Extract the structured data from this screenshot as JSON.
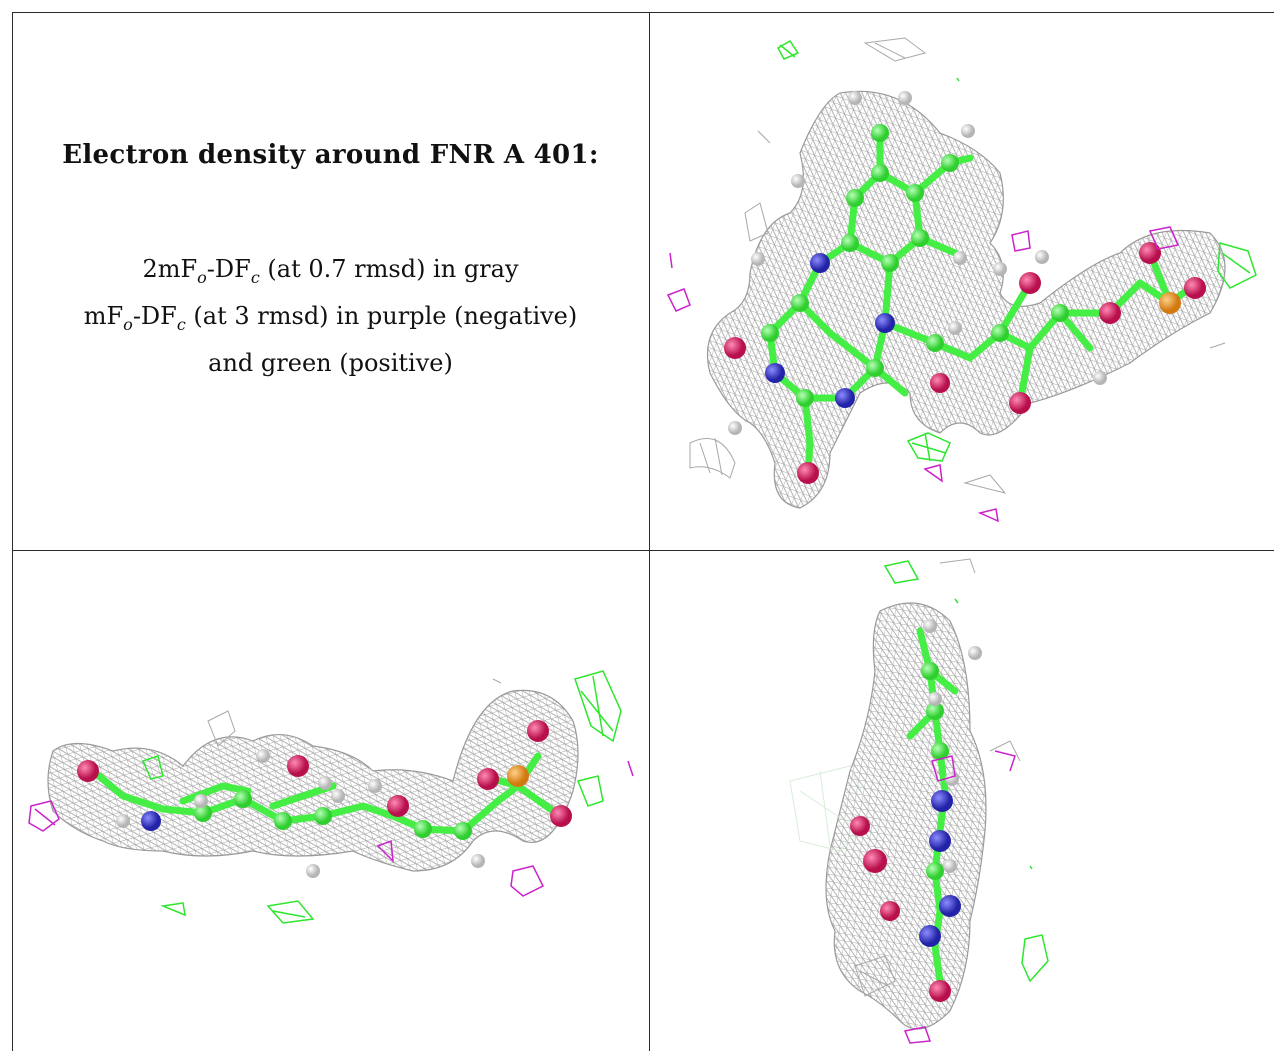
{
  "caption": {
    "title": "Electron density around FNR A 401:",
    "line1_pre": "2mF",
    "line1_sub1": "o",
    "line1_mid": "-DF",
    "line1_sub2": "c",
    "line1_post": " (at 0.7 rmsd) in gray",
    "line2_pre": "mF",
    "line2_sub1": "o",
    "line2_mid": "-DF",
    "line2_sub2": "c",
    "line2_post": " (at 3 rmsd) in purple (negative)",
    "line3": "and green (positive)"
  },
  "colors": {
    "mesh_gray": "#a8a8a8",
    "positive_green": "#2ee62e",
    "negative_purple": "#cc22cc",
    "carbon": "#44ee44",
    "nitrogen": "#3a3ad8",
    "oxygen": "#e8206a",
    "phosphorus": "#f29a22",
    "hydrogen": "#e6e6e6"
  }
}
